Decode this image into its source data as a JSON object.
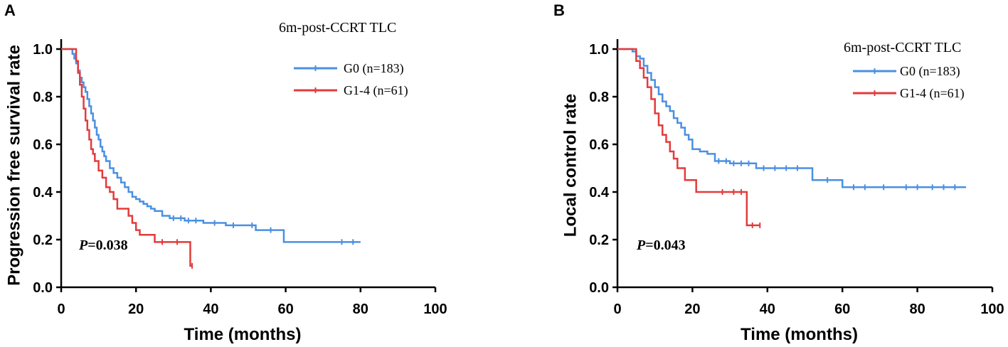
{
  "chart_data": [
    {
      "type": "line",
      "panel_label": "A",
      "title": "",
      "xlabel": "Time (months)",
      "ylabel": "Progression free survival rate",
      "xlim": [
        0,
        100
      ],
      "ylim": [
        0,
        1.0
      ],
      "x_ticks": [
        0,
        20,
        40,
        60,
        80,
        100
      ],
      "y_ticks": [
        0.0,
        0.2,
        0.4,
        0.6,
        0.8,
        1.0
      ],
      "x_tick_labels": [
        "0",
        "20",
        "40",
        "60",
        "80",
        "100"
      ],
      "y_tick_labels": [
        "0.0",
        "0.2",
        "0.4",
        "0.6",
        "0.8",
        "1.0"
      ],
      "legend_title": "6m-post-CCRT TLC",
      "annotation_p_label": "P",
      "annotation_p_value": "=0.038",
      "series": [
        {
          "name": "G0 (n=183)",
          "color": "#4a90e2",
          "x": [
            0,
            2.5,
            3,
            3.5,
            4,
            4.5,
            5,
            5.5,
            6,
            6.5,
            7,
            7.5,
            8,
            8.5,
            9,
            9.5,
            10,
            10.5,
            11,
            11.5,
            12,
            13,
            14,
            15,
            16,
            17,
            18,
            19,
            20,
            21,
            22,
            23,
            24,
            25,
            27,
            29,
            33,
            38,
            44,
            52,
            59,
            59.5,
            80
          ],
          "y": [
            1.0,
            1.0,
            0.98,
            0.96,
            0.94,
            0.91,
            0.88,
            0.86,
            0.84,
            0.82,
            0.79,
            0.76,
            0.73,
            0.7,
            0.67,
            0.64,
            0.62,
            0.59,
            0.57,
            0.55,
            0.53,
            0.5,
            0.48,
            0.46,
            0.44,
            0.42,
            0.4,
            0.38,
            0.37,
            0.36,
            0.35,
            0.34,
            0.33,
            0.32,
            0.3,
            0.29,
            0.28,
            0.27,
            0.26,
            0.24,
            0.24,
            0.19,
            0.19
          ],
          "censor_x": [
            30,
            32,
            34,
            36,
            41,
            46,
            51,
            56,
            75,
            78
          ]
        },
        {
          "name": "G1-4 (n=61)",
          "color": "#e33b3b",
          "x": [
            0,
            3.5,
            4,
            4.5,
            5,
            5.5,
            6,
            6.5,
            7,
            7.5,
            8,
            8.5,
            9,
            10,
            11,
            12,
            13,
            14,
            15,
            16,
            18,
            19,
            20,
            21,
            25,
            34,
            34.5,
            35
          ],
          "y": [
            1.0,
            1.0,
            0.95,
            0.9,
            0.85,
            0.8,
            0.75,
            0.7,
            0.66,
            0.62,
            0.58,
            0.56,
            0.53,
            0.49,
            0.46,
            0.42,
            0.4,
            0.37,
            0.33,
            0.33,
            0.3,
            0.27,
            0.24,
            0.22,
            0.19,
            0.19,
            0.09,
            0.09
          ],
          "censor_x": [
            27,
            31,
            35
          ]
        }
      ]
    },
    {
      "type": "line",
      "panel_label": "B",
      "title": "",
      "xlabel": "Time (months)",
      "ylabel": "Local control rate",
      "xlim": [
        0,
        100
      ],
      "ylim": [
        0,
        1.0
      ],
      "x_ticks": [
        0,
        20,
        40,
        60,
        80,
        100
      ],
      "y_ticks": [
        0.0,
        0.2,
        0.4,
        0.6,
        0.8,
        1.0
      ],
      "x_tick_labels": [
        "0",
        "20",
        "40",
        "60",
        "80",
        "100"
      ],
      "y_tick_labels": [
        "0.0",
        "0.2",
        "0.4",
        "0.6",
        "0.8",
        "1.0"
      ],
      "legend_title": "6m-post-CCRT TLC",
      "annotation_p_label": "P",
      "annotation_p_value": "=0.043",
      "series": [
        {
          "name": "G0 (n=183)",
          "color": "#4a90e2",
          "x": [
            0,
            3,
            4,
            5,
            6,
            7,
            8,
            9,
            10,
            11,
            12,
            13,
            14,
            15,
            16,
            17,
            18,
            19,
            20,
            22,
            24,
            26,
            30,
            37,
            51,
            52,
            59,
            60,
            93
          ],
          "y": [
            1.0,
            1.0,
            0.99,
            0.97,
            0.96,
            0.93,
            0.9,
            0.87,
            0.84,
            0.81,
            0.78,
            0.76,
            0.74,
            0.71,
            0.69,
            0.67,
            0.64,
            0.62,
            0.58,
            0.57,
            0.56,
            0.53,
            0.52,
            0.5,
            0.5,
            0.45,
            0.45,
            0.42,
            0.42
          ],
          "censor_x": [
            27,
            29,
            31,
            33,
            35,
            39,
            42,
            45,
            48,
            56,
            63,
            66,
            71,
            77,
            80,
            84,
            87,
            90
          ]
        },
        {
          "name": "G1-4 (n=61)",
          "color": "#e33b3b",
          "x": [
            0,
            4,
            5,
            6,
            7,
            8,
            9,
            10,
            11,
            12,
            13,
            14,
            15,
            16,
            18,
            21,
            34,
            34.5,
            38
          ],
          "y": [
            1.0,
            1.0,
            0.95,
            0.92,
            0.88,
            0.84,
            0.79,
            0.73,
            0.68,
            0.64,
            0.61,
            0.57,
            0.54,
            0.5,
            0.45,
            0.4,
            0.4,
            0.26,
            0.26
          ],
          "censor_x": [
            28,
            31,
            33,
            36,
            38
          ]
        }
      ]
    }
  ]
}
